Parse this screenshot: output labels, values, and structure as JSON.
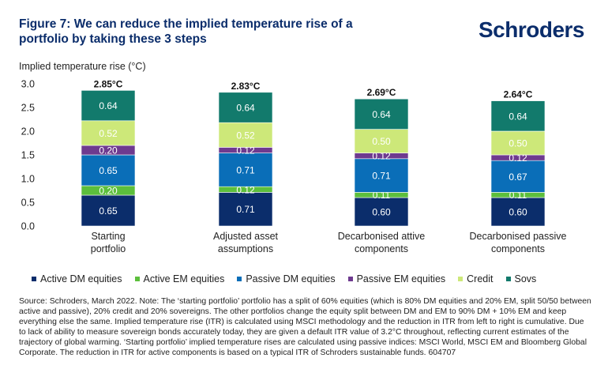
{
  "header": {
    "title": "Figure 7: We can reduce the implied temperature rise of a portfolio by taking these 3 steps",
    "logo": "Schroders"
  },
  "colors": {
    "active_dm": "#0b2d6b",
    "active_em": "#5cbf3c",
    "passive_dm": "#0a6eb8",
    "passive_em": "#6e3a8f",
    "credit": "#cde879",
    "sovs": "#127a6c"
  },
  "chart_data": {
    "type": "bar",
    "stacked": true,
    "ylabel": "Implied temperature rise (°C)",
    "ylim": [
      0,
      3.0
    ],
    "yticks": [
      "0.0",
      "0.5",
      "1.0",
      "1.5",
      "2.0",
      "2.5",
      "3.0"
    ],
    "categories": [
      [
        "Starting",
        "portfolio"
      ],
      [
        "Adjusted asset",
        "assumptions"
      ],
      [
        "Decarbonised attive",
        "components"
      ],
      [
        "Decarbonised passive",
        "components"
      ]
    ],
    "totals": [
      "2.85°C",
      "2.83°C",
      "2.69°C",
      "2.64°C"
    ],
    "series": [
      {
        "name": "Active DM equities",
        "key": "active_dm",
        "values": [
          0.65,
          0.71,
          0.6,
          0.6
        ]
      },
      {
        "name": "Active EM equities",
        "key": "active_em",
        "values": [
          0.2,
          0.12,
          0.11,
          0.11
        ]
      },
      {
        "name": "Passive DM equities",
        "key": "passive_dm",
        "values": [
          0.65,
          0.71,
          0.71,
          0.67
        ]
      },
      {
        "name": "Passive EM equities",
        "key": "passive_em",
        "values": [
          0.2,
          0.12,
          0.12,
          0.12
        ]
      },
      {
        "name": "Credit",
        "key": "credit",
        "values": [
          0.52,
          0.52,
          0.5,
          0.5
        ]
      },
      {
        "name": "Sovs",
        "key": "sovs",
        "values": [
          0.64,
          0.64,
          0.64,
          0.64
        ]
      }
    ]
  },
  "source": "Source: Schroders, March 2022. Note: The ‘starting portfolio’ portfolio has a split of 60% equities (which is 80% DM equities and 20% EM, split 50/50 between active and passive), 20% credit and 20% sovereigns. The other portfolios change the equity split between DM and EM to 90% DM + 10% EM and keep everything else the same. Implied temperature rise (ITR) is calculated using MSCI methodology and the reduction in ITR from left to right is cumulative. Due to lack of ability to measure sovereign bonds accurately today, they are given a default ITR value of 3.2°C throughout, reflecting current estimates of the trajectory of global warming.  ‘Starting portfolio’ implied temperature rises are calculated  using passive indices: MSCI World, MSCI EM and Bloomberg Global Corporate. The reduction in ITR for active components is based on a typical ITR of Schroders sustainable funds. 604707"
}
